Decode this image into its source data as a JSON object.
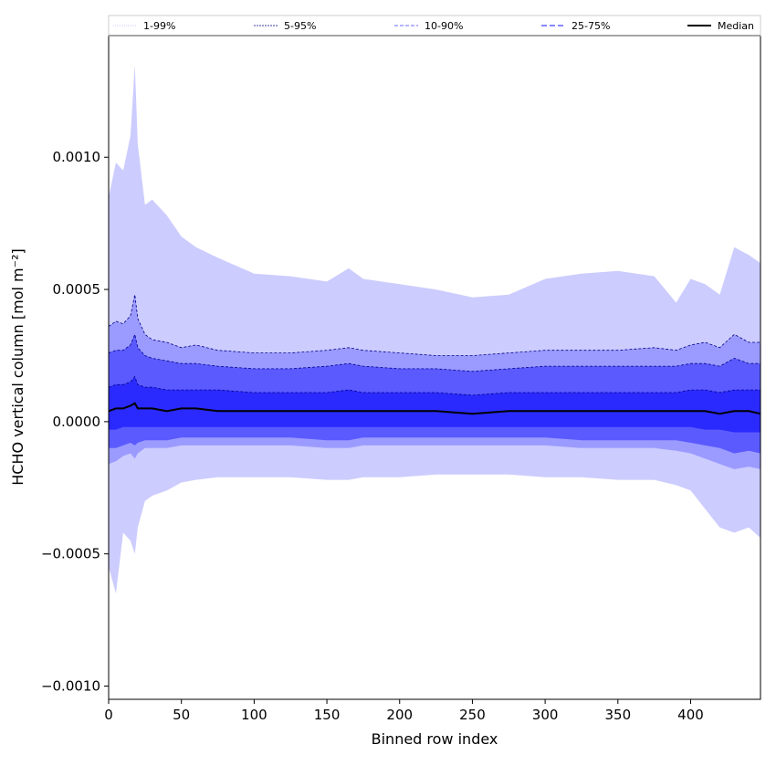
{
  "chart_data": {
    "type": "area",
    "title": "",
    "xlabel": "Binned row index",
    "ylabel": "HCHO vertical column [mol m⁻²]",
    "xlim": [
      0,
      448
    ],
    "ylim": [
      -0.00105,
      0.00146
    ],
    "x_ticks": [
      0,
      50,
      100,
      150,
      200,
      250,
      300,
      350,
      400
    ],
    "x_tick_labels": [
      "0",
      "50",
      "100",
      "150",
      "200",
      "250",
      "300",
      "350",
      "400"
    ],
    "y_ticks": [
      -0.001,
      -0.0005,
      0.0,
      0.0005,
      0.001
    ],
    "y_tick_labels": [
      "−0.0010",
      "−0.0005",
      "0.0000",
      "0.0005",
      "0.0010"
    ],
    "grid": false,
    "legend_position": "top",
    "colors": {
      "band_1_99": "#ccccff",
      "band_5_95": "#9b9bff",
      "band_10_90": "#5a5aff",
      "band_25_75": "#2a2aff",
      "edge": "#00008b",
      "median": "#000000"
    },
    "x": [
      0,
      5,
      10,
      15,
      18,
      20,
      25,
      30,
      40,
      50,
      60,
      75,
      100,
      125,
      150,
      165,
      175,
      200,
      225,
      250,
      275,
      300,
      325,
      350,
      375,
      390,
      400,
      410,
      420,
      430,
      440,
      448
    ],
    "series": [
      {
        "name": "1-99%",
        "style": "dotted",
        "upper": [
          0.00085,
          0.00098,
          0.00095,
          0.00108,
          0.00135,
          0.00105,
          0.00082,
          0.00084,
          0.00078,
          0.0007,
          0.00066,
          0.00062,
          0.00056,
          0.00055,
          0.00053,
          0.00058,
          0.00054,
          0.00052,
          0.0005,
          0.00047,
          0.00048,
          0.00054,
          0.00056,
          0.00057,
          0.00055,
          0.00045,
          0.00054,
          0.00052,
          0.00048,
          0.00066,
          0.00063,
          0.0006
        ],
        "lower": [
          -0.00055,
          -0.00065,
          -0.00042,
          -0.00045,
          -0.0005,
          -0.0004,
          -0.0003,
          -0.00028,
          -0.00026,
          -0.00023,
          -0.00022,
          -0.00021,
          -0.00021,
          -0.00021,
          -0.00022,
          -0.00022,
          -0.00021,
          -0.00021,
          -0.0002,
          -0.0002,
          -0.0002,
          -0.00021,
          -0.00021,
          -0.00022,
          -0.00022,
          -0.00024,
          -0.00026,
          -0.00033,
          -0.0004,
          -0.00042,
          -0.0004,
          -0.00044
        ]
      },
      {
        "name": "5-95%",
        "style": "dashed",
        "upper": [
          0.00036,
          0.00038,
          0.00037,
          0.0004,
          0.00048,
          0.00039,
          0.00033,
          0.00031,
          0.0003,
          0.00028,
          0.00029,
          0.00027,
          0.00026,
          0.00026,
          0.00027,
          0.00028,
          0.00027,
          0.00026,
          0.00025,
          0.00025,
          0.00026,
          0.00027,
          0.00027,
          0.00027,
          0.00028,
          0.00027,
          0.00029,
          0.0003,
          0.00028,
          0.00033,
          0.0003,
          0.0003
        ],
        "lower": [
          -0.00016,
          -0.00015,
          -0.00013,
          -0.00012,
          -0.00014,
          -0.00012,
          -0.0001,
          -0.0001,
          -0.0001,
          -9e-05,
          -9e-05,
          -9e-05,
          -9e-05,
          -9e-05,
          -0.0001,
          -0.0001,
          -9e-05,
          -9e-05,
          -9e-05,
          -9e-05,
          -9e-05,
          -9e-05,
          -0.0001,
          -0.0001,
          -0.0001,
          -0.00011,
          -0.00012,
          -0.00014,
          -0.00016,
          -0.00018,
          -0.00017,
          -0.00018
        ]
      },
      {
        "name": "10-90%",
        "style": "dashed",
        "upper": [
          0.00026,
          0.00027,
          0.00027,
          0.00029,
          0.00033,
          0.00028,
          0.00025,
          0.00024,
          0.00023,
          0.00022,
          0.00022,
          0.00021,
          0.0002,
          0.0002,
          0.00021,
          0.00022,
          0.00021,
          0.0002,
          0.0002,
          0.00019,
          0.0002,
          0.00021,
          0.00021,
          0.00021,
          0.00021,
          0.00021,
          0.00022,
          0.00022,
          0.00021,
          0.00024,
          0.00022,
          0.00022
        ],
        "lower": [
          -0.0001,
          -0.0001,
          -9e-05,
          -8e-05,
          -9e-05,
          -8e-05,
          -7e-05,
          -7e-05,
          -7e-05,
          -6e-05,
          -6e-05,
          -6e-05,
          -6e-05,
          -6e-05,
          -7e-05,
          -7e-05,
          -6e-05,
          -6e-05,
          -6e-05,
          -6e-05,
          -6e-05,
          -6e-05,
          -7e-05,
          -7e-05,
          -7e-05,
          -7e-05,
          -8e-05,
          -9e-05,
          -0.0001,
          -0.00012,
          -0.00011,
          -0.00012
        ]
      },
      {
        "name": "25-75%",
        "style": "dashed",
        "upper": [
          0.00013,
          0.00014,
          0.00014,
          0.00015,
          0.00017,
          0.00014,
          0.00013,
          0.00013,
          0.00012,
          0.00012,
          0.00012,
          0.00012,
          0.00011,
          0.00011,
          0.00011,
          0.00012,
          0.00011,
          0.00011,
          0.00011,
          0.0001,
          0.00011,
          0.00011,
          0.00011,
          0.00011,
          0.00011,
          0.00011,
          0.00012,
          0.00012,
          0.00011,
          0.00012,
          0.00012,
          0.00012
        ],
        "lower": [
          -3e-05,
          -3e-05,
          -2e-05,
          -2e-05,
          -2e-05,
          -2e-05,
          -2e-05,
          -2e-05,
          -2e-05,
          -2e-05,
          -2e-05,
          -2e-05,
          -2e-05,
          -2e-05,
          -2e-05,
          -2e-05,
          -2e-05,
          -2e-05,
          -2e-05,
          -2e-05,
          -2e-05,
          -2e-05,
          -2e-05,
          -2e-05,
          -2e-05,
          -2e-05,
          -2e-05,
          -3e-05,
          -3e-05,
          -4e-05,
          -4e-05,
          -4e-05
        ]
      },
      {
        "name": "Median",
        "style": "solid",
        "values": [
          4e-05,
          5e-05,
          5e-05,
          6e-05,
          7e-05,
          5e-05,
          5e-05,
          5e-05,
          4e-05,
          5e-05,
          5e-05,
          4e-05,
          4e-05,
          4e-05,
          4e-05,
          4e-05,
          4e-05,
          4e-05,
          4e-05,
          3e-05,
          4e-05,
          4e-05,
          4e-05,
          4e-05,
          4e-05,
          4e-05,
          4e-05,
          4e-05,
          3e-05,
          4e-05,
          4e-05,
          3e-05
        ]
      }
    ]
  }
}
